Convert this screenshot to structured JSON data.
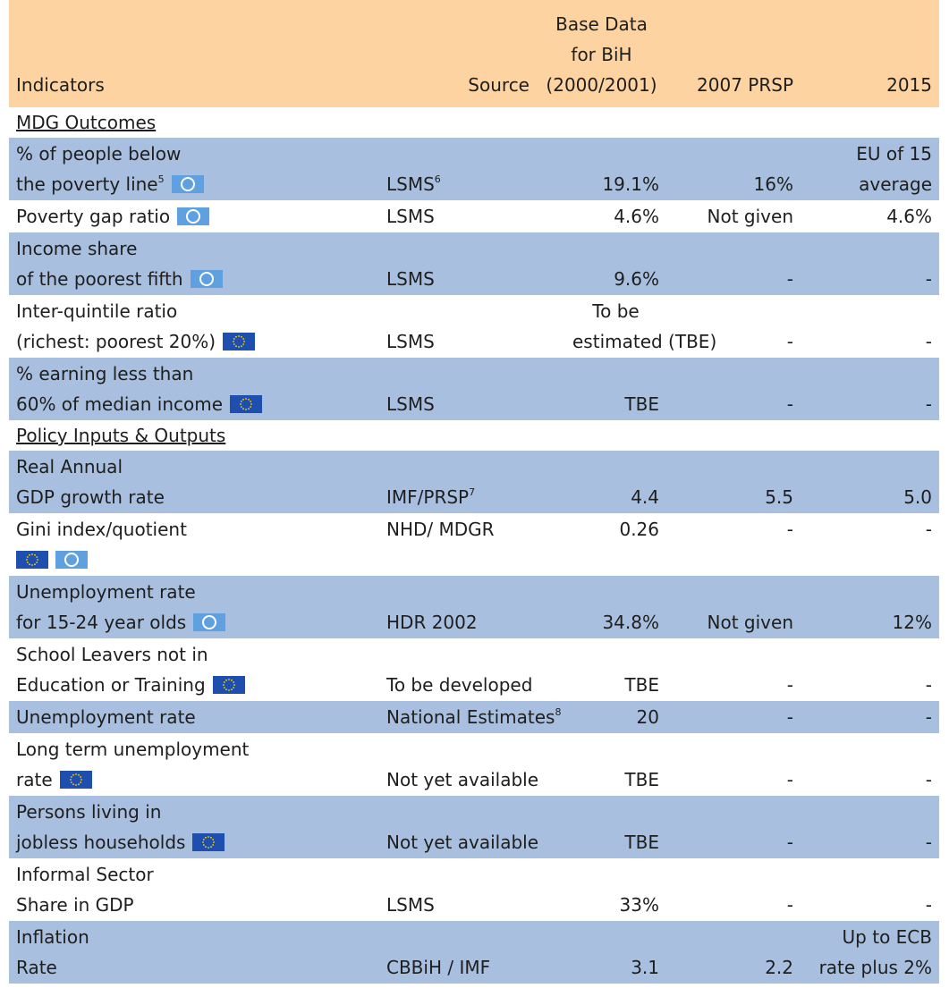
{
  "header": {
    "indicators": "Indicators",
    "source": "Source",
    "base": [
      "Base Data",
      "for BiH",
      "(2000/2001)"
    ],
    "prsp": "2007 PRSP",
    "target": "2015"
  },
  "sections": [
    {
      "title": "MDG Outcomes",
      "rows": [
        {
          "indicator": [
            "% of people below",
            "the poverty line"
          ],
          "indicator_note": "5",
          "source": "LSMS",
          "source_note": "6",
          "base": [
            "19.1%"
          ],
          "prsp": [
            "16%"
          ],
          "target": [
            "EU of 15",
            "average"
          ]
        },
        {
          "indicator": [
            "Poverty gap ratio"
          ],
          "source": "LSMS",
          "base": [
            "4.6%"
          ],
          "prsp": [
            "Not given"
          ],
          "target": [
            "4.6%"
          ]
        },
        {
          "indicator": [
            "Income share",
            "of the poorest fifth"
          ],
          "source": "LSMS",
          "base": [
            "9.6%"
          ],
          "prsp": [
            "-"
          ],
          "target": [
            "-"
          ]
        },
        {
          "indicator": [
            "Inter-quintile ratio",
            "(richest: poorest 20%)"
          ],
          "source": "LSMS",
          "base": [
            "To be",
            "estimated (TBE)"
          ],
          "prsp": [
            "-"
          ],
          "target": [
            "-"
          ]
        },
        {
          "indicator": [
            "% earning less than",
            "60% of median income"
          ],
          "source": "LSMS",
          "base": [
            "TBE"
          ],
          "prsp": [
            "-"
          ],
          "target": [
            "-"
          ]
        }
      ]
    },
    {
      "title": "Policy Inputs & Outputs",
      "rows": [
        {
          "indicator": [
            "Real Annual",
            "GDP growth rate"
          ],
          "source": "IMF/PRSP",
          "source_note": "7",
          "base": [
            "4.4"
          ],
          "prsp": [
            "5.5"
          ],
          "target": [
            "5.0"
          ]
        },
        {
          "indicator": [
            "Gini index/quotient"
          ],
          "source": "NHD/ MDGR",
          "base": [
            "0.26"
          ],
          "prsp": [
            "-"
          ],
          "target": [
            "-"
          ]
        },
        {
          "indicator": [
            "Unemployment rate",
            "for 15-24 year olds"
          ],
          "source": "HDR 2002",
          "base": [
            "34.8%"
          ],
          "prsp": [
            "Not given"
          ],
          "target": [
            "12%"
          ]
        },
        {
          "indicator": [
            "School Leavers not in",
            "Education or Training"
          ],
          "source": "To be developed",
          "base": [
            "TBE"
          ],
          "prsp": [
            "-"
          ],
          "target": [
            "-"
          ]
        },
        {
          "indicator": [
            "Unemployment rate"
          ],
          "source": "National Estimates",
          "source_note": "8",
          "base": [
            "20"
          ],
          "prsp": [
            "-"
          ],
          "target": [
            "-"
          ]
        },
        {
          "indicator": [
            "Long term unemployment",
            "rate"
          ],
          "source": "Not yet available",
          "base": [
            "TBE"
          ],
          "prsp": [
            "-"
          ],
          "target": [
            "-"
          ]
        },
        {
          "indicator": [
            "Persons living in",
            "jobless households"
          ],
          "source": "Not yet available",
          "base": [
            "TBE"
          ],
          "prsp": [
            "-"
          ],
          "target": [
            "-"
          ]
        },
        {
          "indicator": [
            "Informal Sector",
            "Share in GDP"
          ],
          "source": "LSMS",
          "base": [
            "33%"
          ],
          "prsp": [
            "-"
          ],
          "target": [
            "-"
          ]
        },
        {
          "indicator": [
            "Inflation",
            "Rate"
          ],
          "source": "CBBiH / IMF",
          "base": [
            "3.1"
          ],
          "prsp": [
            "2.2"
          ],
          "target": [
            "Up to ECB",
            "rate plus 2%"
          ]
        }
      ]
    }
  ]
}
